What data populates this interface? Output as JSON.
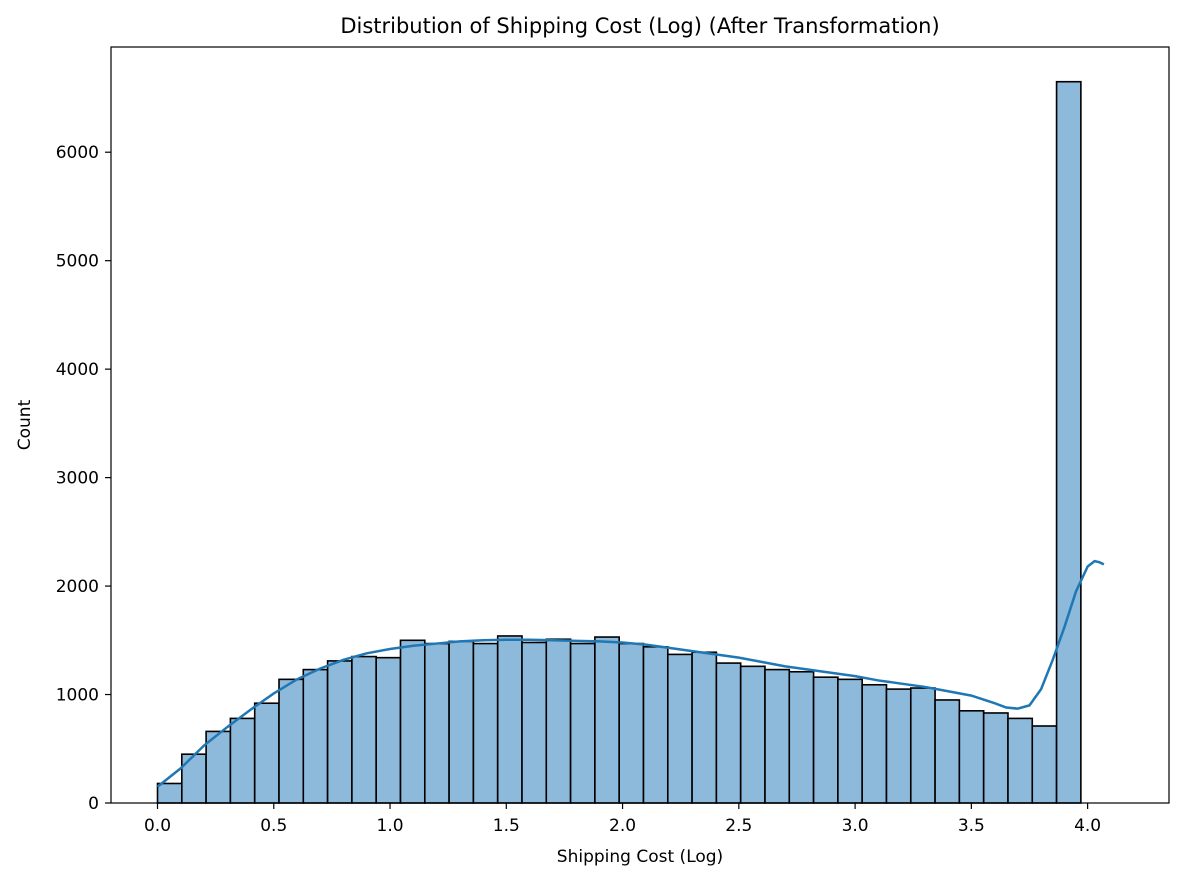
{
  "chart_data": {
    "type": "histogram",
    "title": "Distribution of Shipping Cost (Log) (After Transformation)",
    "xlabel": "Shipping Cost (Log)",
    "ylabel": "Count",
    "xlim": [
      -0.2,
      4.35
    ],
    "ylim": [
      0,
      6970
    ],
    "xticks": [
      0.0,
      0.5,
      1.0,
      1.5,
      2.0,
      2.5,
      3.0,
      3.5,
      4.0
    ],
    "xtick_labels": [
      "0.0",
      "0.5",
      "1.0",
      "1.5",
      "2.0",
      "2.5",
      "3.0",
      "3.5",
      "4.0"
    ],
    "yticks": [
      0,
      1000,
      2000,
      3000,
      4000,
      5000,
      6000
    ],
    "ytick_labels": [
      "0",
      "1000",
      "2000",
      "3000",
      "4000",
      "5000",
      "6000"
    ],
    "bin_start": 0.0,
    "bin_width": 0.1045,
    "counts": [
      180,
      450,
      660,
      780,
      920,
      1140,
      1230,
      1310,
      1350,
      1340,
      1500,
      1470,
      1490,
      1470,
      1540,
      1480,
      1510,
      1470,
      1530,
      1470,
      1440,
      1370,
      1390,
      1290,
      1260,
      1230,
      1210,
      1160,
      1140,
      1090,
      1050,
      1060,
      950,
      850,
      830,
      780,
      710,
      6650
    ],
    "kde": {
      "x": [
        0.0,
        0.1,
        0.2,
        0.3,
        0.4,
        0.5,
        0.6,
        0.7,
        0.8,
        0.9,
        1.0,
        1.1,
        1.2,
        1.3,
        1.4,
        1.5,
        1.6,
        1.7,
        1.8,
        1.9,
        2.0,
        2.1,
        2.2,
        2.3,
        2.4,
        2.5,
        2.6,
        2.7,
        2.8,
        2.9,
        3.0,
        3.1,
        3.2,
        3.3,
        3.4,
        3.5,
        3.6,
        3.65,
        3.7,
        3.75,
        3.8,
        3.85,
        3.9,
        3.95,
        4.0,
        4.03,
        4.05,
        4.07
      ],
      "y": [
        150,
        320,
        530,
        700,
        860,
        1010,
        1140,
        1240,
        1320,
        1380,
        1420,
        1450,
        1470,
        1490,
        1500,
        1505,
        1505,
        1500,
        1495,
        1490,
        1480,
        1460,
        1430,
        1400,
        1370,
        1340,
        1300,
        1260,
        1230,
        1200,
        1170,
        1130,
        1100,
        1070,
        1030,
        990,
        920,
        880,
        870,
        900,
        1050,
        1320,
        1620,
        1950,
        2180,
        2230,
        2220,
        2200
      ]
    },
    "bar_color": "#8db9db",
    "bar_edge_color": "#000000",
    "kde_color": "#1f77b4"
  }
}
